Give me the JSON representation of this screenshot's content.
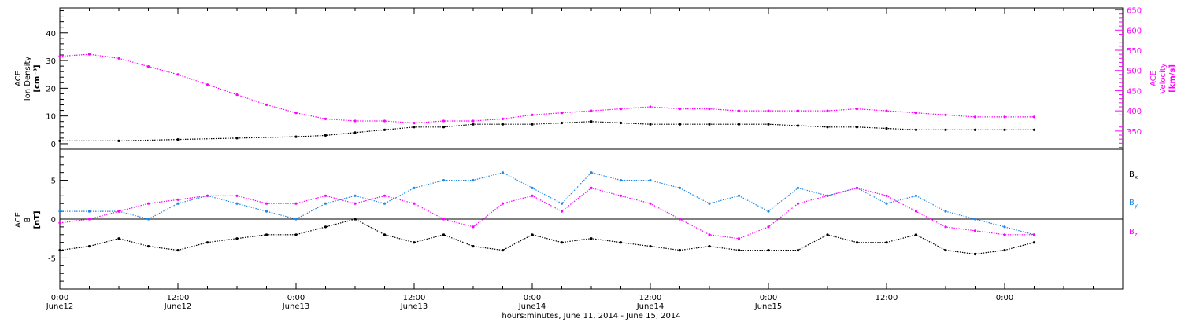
{
  "chart_data": [
    {
      "type": "scatter",
      "panel": "top",
      "ylabel_lines": [
        "ACE",
        "Ion Density",
        "[cm⁻³]"
      ],
      "y2label_lines": [
        "ACE",
        "Velocity",
        "[km/s]"
      ],
      "ylim": [
        -2,
        49
      ],
      "y2lim": [
        305,
        655
      ],
      "yticks": [
        "0",
        "10",
        "20",
        "30",
        "40"
      ],
      "yticks_values": [
        0,
        10,
        20,
        30,
        40
      ],
      "y2ticks": [
        "350",
        "400",
        "450",
        "500",
        "550",
        "600",
        "650"
      ],
      "y2ticks_values": [
        350,
        400,
        450,
        500,
        550,
        600,
        650
      ],
      "series": [
        {
          "color": "#000000",
          "axis": "left",
          "x_hours": [
            0,
            6,
            12,
            18,
            24,
            27,
            30,
            33,
            36,
            39,
            42,
            45,
            48,
            51,
            54,
            57,
            60,
            63,
            66,
            69,
            72,
            75,
            78,
            81,
            84,
            87,
            90,
            93,
            96,
            99
          ],
          "y": [
            1,
            1,
            1.5,
            2,
            2.5,
            3,
            4,
            5,
            6,
            6,
            7,
            7,
            7,
            7.5,
            8,
            7.5,
            7,
            7,
            7,
            7,
            7,
            6.5,
            6,
            6,
            5.5,
            5,
            5,
            5,
            5,
            5
          ]
        },
        {
          "color": "#ff00ff",
          "axis": "right",
          "x_hours": [
            0,
            3,
            6,
            9,
            12,
            15,
            18,
            21,
            24,
            27,
            30,
            33,
            36,
            39,
            42,
            45,
            48,
            51,
            54,
            57,
            60,
            63,
            66,
            69,
            72,
            75,
            78,
            81,
            84,
            87,
            90,
            93,
            96,
            99
          ],
          "y": [
            535,
            540,
            530,
            510,
            490,
            465,
            440,
            415,
            395,
            380,
            375,
            375,
            370,
            375,
            375,
            380,
            390,
            395,
            400,
            405,
            410,
            405,
            405,
            400,
            400,
            400,
            400,
            405,
            400,
            395,
            390,
            385,
            385,
            385
          ]
        }
      ]
    },
    {
      "type": "scatter",
      "panel": "bottom",
      "ylabel_lines": [
        "ACE",
        "B",
        "[nT]"
      ],
      "ylim": [
        -9,
        9
      ],
      "yticks": [
        "-5",
        "0",
        "5"
      ],
      "yticks_values": [
        -5,
        0,
        5
      ],
      "zero_line": true,
      "legend": [
        {
          "label": "B",
          "sub": "x",
          "color": "#000000"
        },
        {
          "label": "B",
          "sub": "y",
          "color": "#1e88e5"
        },
        {
          "label": "B",
          "sub": "z",
          "color": "#ff00ff"
        }
      ],
      "series": [
        {
          "color": "#000000",
          "x_hours": [
            0,
            3,
            6,
            9,
            12,
            15,
            18,
            21,
            24,
            27,
            30,
            33,
            36,
            39,
            42,
            45,
            48,
            51,
            54,
            57,
            60,
            63,
            66,
            69,
            72,
            75,
            78,
            81,
            84,
            87,
            90,
            93,
            96,
            99
          ],
          "y": [
            -4,
            -3.5,
            -2.5,
            -3.5,
            -4,
            -3,
            -2.5,
            -2,
            -2,
            -1,
            0,
            -2,
            -3,
            -2,
            -3.5,
            -4,
            -2,
            -3,
            -2.5,
            -3,
            -3.5,
            -4,
            -3.5,
            -4,
            -4,
            -4,
            -2,
            -3,
            -3,
            -2,
            -4,
            -4.5,
            -4,
            -3
          ]
        },
        {
          "color": "#1e88e5",
          "x_hours": [
            0,
            3,
            6,
            9,
            12,
            15,
            18,
            21,
            24,
            27,
            30,
            33,
            36,
            39,
            42,
            45,
            48,
            51,
            54,
            57,
            60,
            63,
            66,
            69,
            72,
            75,
            78,
            81,
            84,
            87,
            90,
            93,
            96,
            99
          ],
          "y": [
            1,
            1,
            1,
            0,
            2,
            3,
            2,
            1,
            0,
            2,
            3,
            2,
            4,
            5,
            5,
            6,
            4,
            2,
            6,
            5,
            5,
            4,
            2,
            3,
            1,
            4,
            3,
            4,
            2,
            3,
            1,
            0,
            -1,
            -2
          ]
        },
        {
          "color": "#ff00ff",
          "x_hours": [
            0,
            3,
            6,
            9,
            12,
            15,
            18,
            21,
            24,
            27,
            30,
            33,
            36,
            39,
            42,
            45,
            48,
            51,
            54,
            57,
            60,
            63,
            66,
            69,
            72,
            75,
            78,
            81,
            84,
            87,
            90,
            93,
            96,
            99
          ],
          "y": [
            -0.5,
            0,
            1,
            2,
            2.5,
            3,
            3,
            2,
            2,
            3,
            2,
            3,
            2,
            0,
            -1,
            2,
            3,
            1,
            4,
            3,
            2,
            0,
            -2,
            -2.5,
            -1,
            2,
            3,
            4,
            3,
            1,
            -1,
            -1.5,
            -2,
            -2
          ]
        }
      ]
    }
  ],
  "x_axis": {
    "range_hours": [
      0,
      108
    ],
    "major_ticks_hours": [
      0,
      12,
      24,
      36,
      48,
      60,
      72,
      84,
      96
    ],
    "tick_labels_time": [
      "0:00",
      "12:00",
      "0:00",
      "12:00",
      "0:00",
      "12:00",
      "0:00",
      "12:00",
      "0:00"
    ],
    "tick_labels_date": [
      "June12",
      "June12",
      "June13",
      "June13",
      "June14",
      "June14",
      "June15"
    ],
    "date_positions_hours": [
      0,
      12,
      24,
      36,
      48,
      60,
      72
    ],
    "xlabel": "hours:minutes, June 11, 2014 - June 15, 2014"
  },
  "colors": {
    "black": "#000000",
    "blue": "#1e88e5",
    "magenta": "#ff00ff"
  }
}
